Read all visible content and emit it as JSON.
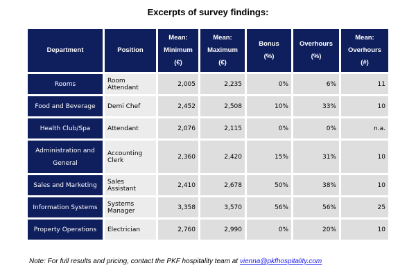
{
  "title": "Excerpts of survey findings:",
  "table": {
    "headers": [
      [
        "Department"
      ],
      [
        "Position"
      ],
      [
        "Mean:",
        "Minimum",
        "(€)"
      ],
      [
        "Mean:",
        "Maximum",
        "(€)"
      ],
      [
        "Bonus",
        "(%)"
      ],
      [
        "Overhours",
        "(%)"
      ],
      [
        "Mean:",
        "Overhours",
        "(#)"
      ]
    ],
    "rows": [
      {
        "department": [
          "Rooms"
        ],
        "position": "Room Attendant",
        "min": "2,005",
        "max": "2,235",
        "bonus": "0%",
        "overhours_pct": "6%",
        "overhours_num": "11"
      },
      {
        "department": [
          "Food and Beverage"
        ],
        "position": "Demi Chef",
        "min": "2,452",
        "max": "2,508",
        "bonus": "10%",
        "overhours_pct": "33%",
        "overhours_num": "10"
      },
      {
        "department": [
          "Health Club/Spa"
        ],
        "position": "Attendant",
        "min": "2,076",
        "max": "2,115",
        "bonus": "0%",
        "overhours_pct": "0%",
        "overhours_num": "n.a."
      },
      {
        "department": [
          "Administration and",
          "General"
        ],
        "position": "Accounting Clerk",
        "min": "2,360",
        "max": "2,420",
        "bonus": "15%",
        "overhours_pct": "31%",
        "overhours_num": "10"
      },
      {
        "department": [
          "Sales and Marketing"
        ],
        "position": "Sales Assistant",
        "min": "2,410",
        "max": "2,678",
        "bonus": "50%",
        "overhours_pct": "38%",
        "overhours_num": "10"
      },
      {
        "department": [
          "Information Systems"
        ],
        "position": "Systems Manager",
        "min": "3,358",
        "max": "3,570",
        "bonus": "56%",
        "overhours_pct": "56%",
        "overhours_num": "25"
      },
      {
        "department": [
          "Property Operations"
        ],
        "position": "Electrician",
        "min": "2,760",
        "max": "2,990",
        "bonus": "0%",
        "overhours_pct": "20%",
        "overhours_num": "10"
      }
    ]
  },
  "note": {
    "text": "Note: For full results and pricing, contact the PKF hospitality team at ",
    "email": "vienna@pkfhospitality.com"
  },
  "colors": {
    "header_bg": "#0f1e5c",
    "cell_bg": "#dedede",
    "link": "#1a1aee"
  }
}
